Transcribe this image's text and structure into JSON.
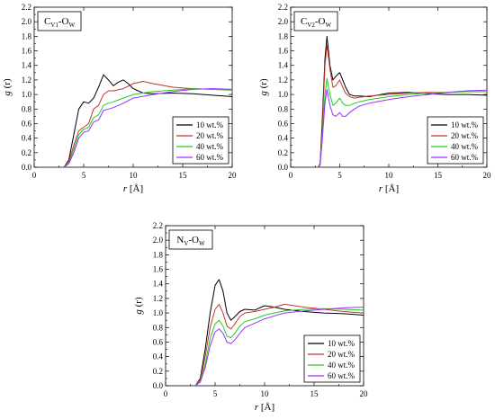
{
  "chart_data": [
    {
      "type": "line",
      "panel_label": {
        "main": "C",
        "sub1": "V1",
        "mid": "-O",
        "sub2": "W"
      },
      "xlabel": {
        "italic": "r",
        "rest": " [Å]"
      },
      "ylabel": {
        "italic": "g",
        "rest": " (r)"
      },
      "xlim": [
        0,
        20
      ],
      "ylim": [
        0,
        2.2
      ],
      "xticks": [
        "0",
        "5",
        "10",
        "15",
        "20"
      ],
      "yticks": [
        "0.0",
        "0.2",
        "0.4",
        "0.6",
        "0.8",
        "1.0",
        "1.2",
        "1.4",
        "1.6",
        "1.8",
        "2.0",
        "2.2"
      ],
      "legend": "lower-right",
      "series": [
        {
          "name": "10 wt.%",
          "color": "#000000",
          "x": [
            3.0,
            3.5,
            4.0,
            4.5,
            5.0,
            5.5,
            6.0,
            6.5,
            7.0,
            7.5,
            8.0,
            8.5,
            9.0,
            9.5,
            10.0,
            11.0,
            12.0,
            14.0,
            16.0,
            18.0,
            20.0
          ],
          "y": [
            0.0,
            0.1,
            0.45,
            0.8,
            0.9,
            0.88,
            0.95,
            1.1,
            1.27,
            1.2,
            1.12,
            1.17,
            1.2,
            1.15,
            1.08,
            1.02,
            1.01,
            1.02,
            1.01,
            0.99,
            0.97
          ]
        },
        {
          "name": "20 wt.%",
          "color": "#c0392b",
          "x": [
            3.0,
            3.5,
            4.0,
            4.5,
            5.0,
            5.5,
            6.0,
            6.5,
            7.0,
            7.5,
            8.0,
            9.0,
            10.0,
            11.0,
            12.0,
            14.0,
            16.0,
            18.0,
            20.0
          ],
          "y": [
            0.0,
            0.08,
            0.3,
            0.5,
            0.55,
            0.6,
            0.8,
            0.85,
            1.0,
            1.05,
            1.05,
            1.08,
            1.15,
            1.18,
            1.15,
            1.1,
            1.08,
            1.07,
            1.06
          ]
        },
        {
          "name": "40 wt.%",
          "color": "#22cc22",
          "x": [
            3.0,
            3.5,
            4.0,
            4.5,
            5.0,
            5.5,
            6.0,
            6.5,
            7.0,
            7.5,
            8.0,
            9.0,
            10.0,
            12.0,
            14.0,
            16.0,
            18.0,
            20.0
          ],
          "y": [
            0.0,
            0.05,
            0.25,
            0.45,
            0.52,
            0.55,
            0.68,
            0.72,
            0.85,
            0.88,
            0.9,
            0.95,
            1.0,
            1.04,
            1.06,
            1.08,
            1.07,
            1.06
          ]
        },
        {
          "name": "60 wt.%",
          "color": "#9b30ff",
          "x": [
            3.0,
            3.5,
            4.0,
            4.5,
            5.0,
            5.5,
            6.0,
            6.5,
            7.0,
            7.5,
            8.0,
            9.0,
            10.0,
            12.0,
            14.0,
            16.0,
            18.0,
            20.0
          ],
          "y": [
            0.0,
            0.05,
            0.2,
            0.4,
            0.48,
            0.5,
            0.62,
            0.65,
            0.78,
            0.8,
            0.82,
            0.88,
            0.95,
            1.0,
            1.04,
            1.07,
            1.08,
            1.07
          ]
        }
      ]
    },
    {
      "type": "line",
      "panel_label": {
        "main": "C",
        "sub1": "V2",
        "mid": "-O",
        "sub2": "W"
      },
      "xlabel": {
        "italic": "r",
        "rest": " [Å]"
      },
      "ylabel": {
        "italic": "g",
        "rest": " (r)"
      },
      "xlim": [
        0,
        20
      ],
      "ylim": [
        0,
        2.2
      ],
      "xticks": [
        "0",
        "5",
        "10",
        "15",
        "20"
      ],
      "yticks": [
        "0.0",
        "0.2",
        "0.4",
        "0.6",
        "0.8",
        "1.0",
        "1.2",
        "1.4",
        "1.6",
        "1.8",
        "2.0",
        "2.2"
      ],
      "legend": "lower-right",
      "series": [
        {
          "name": "10 wt.%",
          "color": "#000000",
          "x": [
            2.8,
            3.0,
            3.2,
            3.5,
            3.7,
            4.0,
            4.3,
            4.6,
            5.0,
            5.3,
            5.6,
            6.0,
            6.5,
            7.0,
            8.0,
            10.0,
            12.0,
            14.0,
            16.0,
            18.0,
            20.0
          ],
          "y": [
            0.0,
            0.05,
            0.6,
            1.5,
            1.8,
            1.4,
            1.2,
            1.25,
            1.3,
            1.2,
            1.1,
            1.0,
            0.98,
            0.98,
            0.97,
            1.02,
            1.03,
            1.01,
            1.0,
            1.0,
            0.99
          ]
        },
        {
          "name": "20 wt.%",
          "color": "#c0392b",
          "x": [
            2.8,
            3.0,
            3.2,
            3.5,
            3.7,
            4.0,
            4.3,
            4.6,
            5.0,
            5.3,
            5.6,
            6.0,
            6.5,
            7.0,
            8.0,
            10.0,
            12.0,
            14.0,
            16.0,
            18.0,
            20.0
          ],
          "y": [
            0.0,
            0.05,
            0.5,
            1.4,
            1.68,
            1.35,
            1.1,
            1.12,
            1.2,
            1.1,
            1.02,
            0.97,
            0.95,
            0.96,
            0.98,
            1.0,
            1.02,
            1.03,
            1.03,
            1.04,
            1.04
          ]
        },
        {
          "name": "40 wt.%",
          "color": "#22cc22",
          "x": [
            2.8,
            3.0,
            3.2,
            3.5,
            3.7,
            4.0,
            4.3,
            4.6,
            5.0,
            5.3,
            5.6,
            6.0,
            6.5,
            7.0,
            8.0,
            10.0,
            12.0,
            14.0,
            16.0,
            18.0,
            20.0
          ],
          "y": [
            0.0,
            0.04,
            0.4,
            1.0,
            1.22,
            1.0,
            0.85,
            0.88,
            0.95,
            0.88,
            0.85,
            0.85,
            0.88,
            0.9,
            0.93,
            0.97,
            1.0,
            1.02,
            1.03,
            1.04,
            1.04
          ]
        },
        {
          "name": "60 wt.%",
          "color": "#9b30ff",
          "x": [
            2.8,
            3.0,
            3.2,
            3.5,
            3.7,
            4.0,
            4.3,
            4.6,
            5.0,
            5.3,
            5.6,
            6.0,
            6.5,
            7.0,
            8.0,
            10.0,
            12.0,
            14.0,
            16.0,
            18.0,
            20.0
          ],
          "y": [
            0.0,
            0.03,
            0.35,
            0.88,
            1.07,
            0.85,
            0.72,
            0.7,
            0.75,
            0.7,
            0.7,
            0.75,
            0.8,
            0.84,
            0.88,
            0.93,
            0.97,
            1.0,
            1.03,
            1.05,
            1.06
          ]
        }
      ]
    },
    {
      "type": "line",
      "panel_label": {
        "main": "N",
        "sub1": "V",
        "mid": "-O",
        "sub2": "W"
      },
      "xlabel": {
        "italic": "r",
        "rest": " [Å]"
      },
      "ylabel": {
        "italic": "g",
        "rest": " (r)"
      },
      "xlim": [
        0,
        20
      ],
      "ylim": [
        0,
        2.2
      ],
      "xticks": [
        "0",
        "5",
        "10",
        "15",
        "20"
      ],
      "yticks": [
        "0.0",
        "0.2",
        "0.4",
        "0.6",
        "0.8",
        "1.0",
        "1.2",
        "1.4",
        "1.6",
        "1.8",
        "2.0",
        "2.2"
      ],
      "legend": "lower-right",
      "series": [
        {
          "name": "10 wt.%",
          "color": "#000000",
          "x": [
            3.0,
            3.5,
            4.0,
            4.5,
            5.0,
            5.4,
            5.8,
            6.2,
            6.6,
            7.0,
            7.5,
            8.0,
            9.0,
            10.0,
            11.0,
            12.0,
            14.0,
            16.0,
            18.0,
            20.0
          ],
          "y": [
            0.0,
            0.1,
            0.5,
            1.0,
            1.38,
            1.46,
            1.3,
            1.0,
            0.9,
            0.95,
            1.02,
            1.05,
            1.04,
            1.1,
            1.08,
            1.05,
            1.02,
            1.0,
            0.99,
            0.97
          ]
        },
        {
          "name": "20 wt.%",
          "color": "#c0392b",
          "x": [
            3.0,
            3.5,
            4.0,
            4.5,
            5.0,
            5.4,
            5.8,
            6.2,
            6.6,
            7.0,
            7.5,
            8.0,
            9.0,
            10.0,
            11.0,
            12.0,
            14.0,
            16.0,
            18.0,
            20.0
          ],
          "y": [
            0.0,
            0.08,
            0.4,
            0.8,
            1.05,
            1.12,
            1.0,
            0.82,
            0.78,
            0.85,
            0.95,
            1.0,
            1.02,
            1.05,
            1.08,
            1.12,
            1.08,
            1.05,
            1.02,
            1.0
          ]
        },
        {
          "name": "40 wt.%",
          "color": "#22cc22",
          "x": [
            3.0,
            3.5,
            4.0,
            4.5,
            5.0,
            5.4,
            5.8,
            6.2,
            6.6,
            7.0,
            7.5,
            8.0,
            9.0,
            10.0,
            11.0,
            12.0,
            14.0,
            16.0,
            18.0,
            20.0
          ],
          "y": [
            0.0,
            0.06,
            0.3,
            0.65,
            0.85,
            0.9,
            0.82,
            0.68,
            0.66,
            0.72,
            0.82,
            0.88,
            0.92,
            0.97,
            1.0,
            1.03,
            1.05,
            1.06,
            1.05,
            1.04
          ]
        },
        {
          "name": "60 wt.%",
          "color": "#9b30ff",
          "x": [
            3.0,
            3.5,
            4.0,
            4.5,
            5.0,
            5.4,
            5.8,
            6.2,
            6.6,
            7.0,
            7.5,
            8.0,
            9.0,
            10.0,
            11.0,
            12.0,
            14.0,
            16.0,
            18.0,
            20.0
          ],
          "y": [
            0.0,
            0.05,
            0.25,
            0.55,
            0.74,
            0.78,
            0.72,
            0.6,
            0.58,
            0.63,
            0.72,
            0.8,
            0.86,
            0.92,
            0.96,
            1.0,
            1.03,
            1.05,
            1.07,
            1.08
          ]
        }
      ]
    }
  ]
}
